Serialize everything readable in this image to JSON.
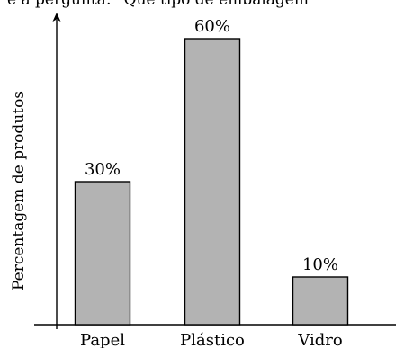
{
  "top_caption": "e a pergunta: “Que tipo de embalagem",
  "chart_data": {
    "type": "bar",
    "categories": [
      "Papel",
      "Plástico",
      "Vidro"
    ],
    "values": [
      30,
      60,
      10
    ],
    "value_labels": [
      "30%",
      "60%",
      "10%"
    ],
    "title": "",
    "xlabel": "",
    "ylabel": "Percentagem de produtos",
    "ylim": [
      0,
      65
    ],
    "grid": false,
    "bar_color": "#b3b3b3",
    "edge_color": "#000000"
  }
}
